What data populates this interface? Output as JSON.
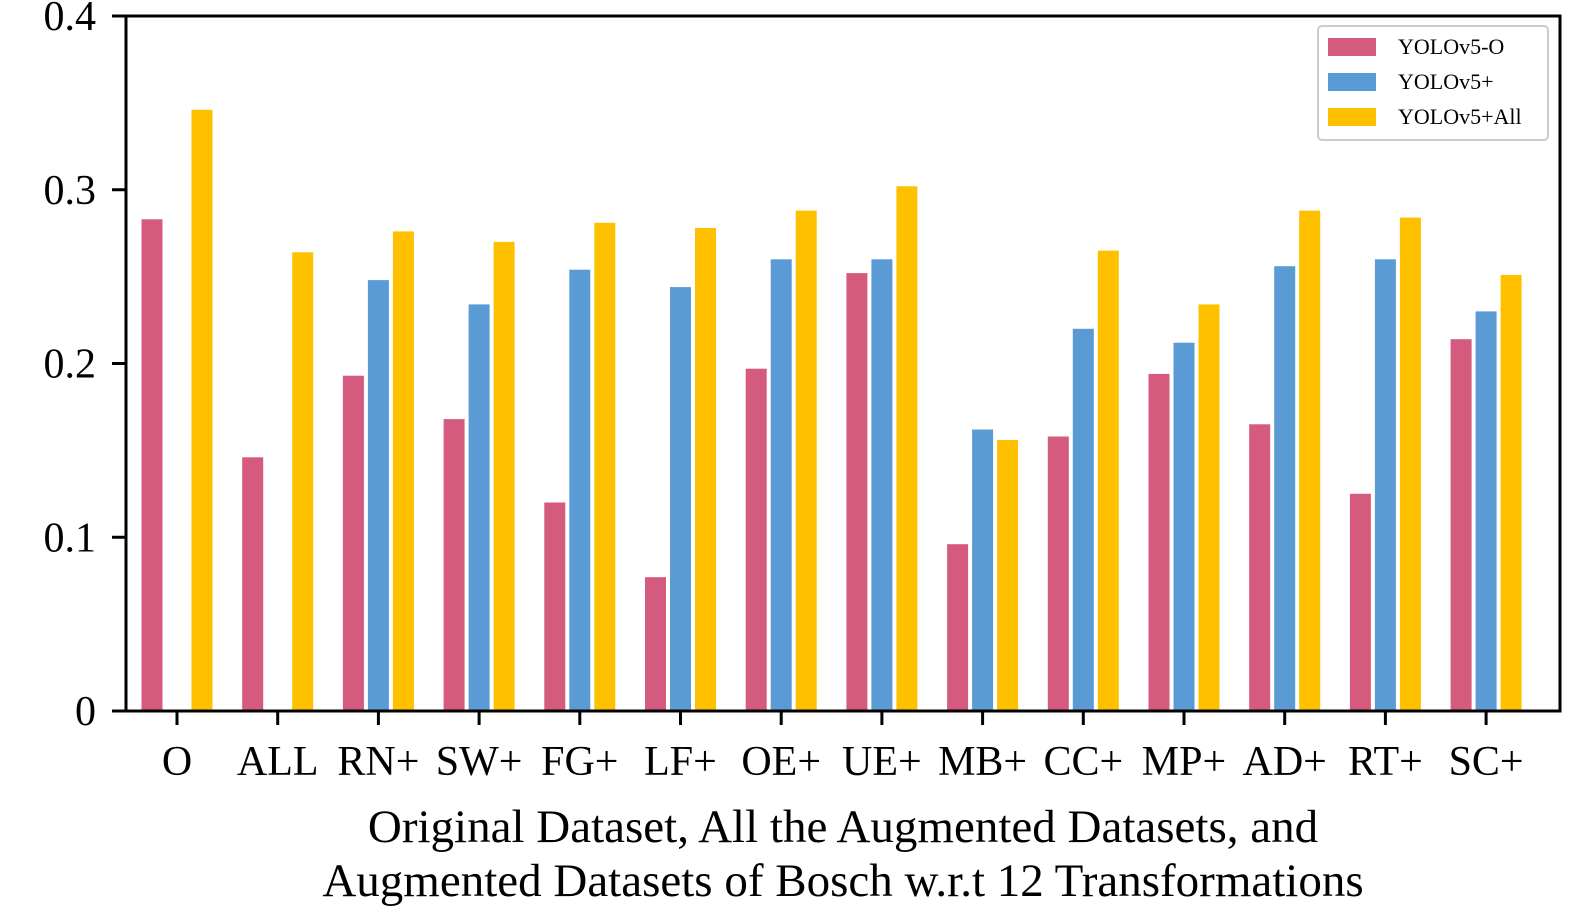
{
  "chart_data": {
    "type": "bar",
    "title": "",
    "xlabel_lines": [
      "Original Dataset, All the Augmented Datasets, and",
      "Augmented Datasets of Bosch w.r.t 12 Transformations"
    ],
    "ylabel": "",
    "ylim": [
      0,
      0.4
    ],
    "yticks": [
      "0",
      "0.1",
      "0.2",
      "0.3",
      "0.4"
    ],
    "yticks_values": [
      0,
      0.1,
      0.2,
      0.3,
      0.4
    ],
    "categories": [
      "O",
      "ALL",
      "RN+",
      "SW+",
      "FG+",
      "LF+",
      "OE+",
      "UE+",
      "MB+",
      "CC+",
      "MP+",
      "AD+",
      "RT+",
      "SC+"
    ],
    "series": [
      {
        "name": "YOLOv5-O",
        "color": "#d45a7e",
        "values": [
          0.283,
          0.146,
          0.193,
          0.168,
          0.12,
          0.077,
          0.197,
          0.252,
          0.096,
          0.158,
          0.194,
          0.165,
          0.125,
          0.214
        ]
      },
      {
        "name": "YOLOv5+",
        "color": "#5b9bd5",
        "values": [
          null,
          null,
          0.248,
          0.234,
          0.254,
          0.244,
          0.26,
          0.26,
          0.162,
          0.22,
          0.212,
          0.256,
          0.26,
          0.23
        ]
      },
      {
        "name": "YOLOv5+All",
        "color": "#ffc000",
        "values": [
          0.346,
          0.264,
          0.276,
          0.27,
          0.281,
          0.278,
          0.288,
          0.302,
          0.156,
          0.265,
          0.234,
          0.288,
          0.284,
          0.251
        ]
      }
    ],
    "legend_position": "top-right",
    "grid": false
  }
}
